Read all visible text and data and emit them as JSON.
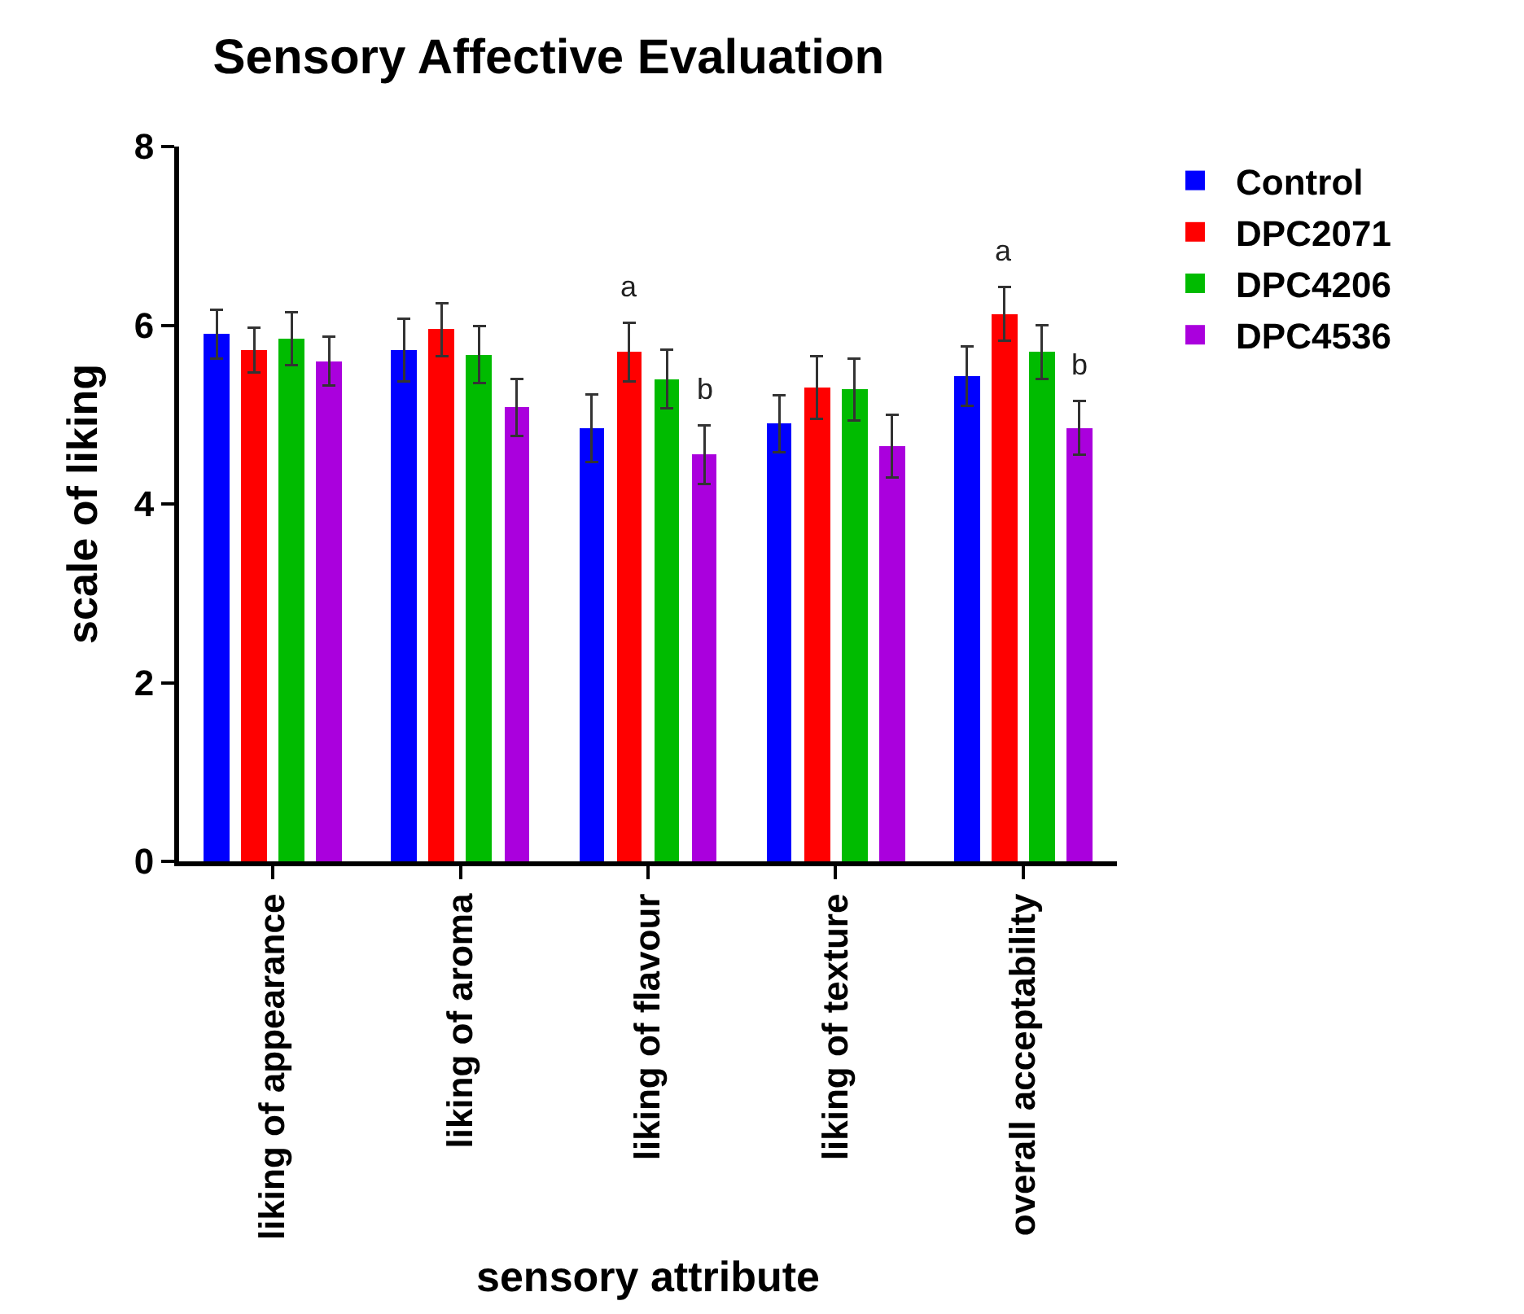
{
  "chart_data": {
    "type": "bar",
    "title": "Sensory Affective Evaluation",
    "xlabel": "sensory attribute",
    "ylabel": "scale of liking",
    "categories": [
      "liking of appearance",
      "liking of aroma",
      "liking of flavour",
      "liking of texture",
      "overall acceptability"
    ],
    "series": [
      {
        "name": "Control",
        "color": "#0000ff",
        "values": [
          5.9,
          5.72,
          4.85,
          4.9,
          5.43
        ],
        "errors": [
          0.27,
          0.35,
          0.38,
          0.32,
          0.33
        ]
      },
      {
        "name": "DPC2071",
        "color": "#ff0000",
        "values": [
          5.72,
          5.95,
          5.7,
          5.3,
          6.13
        ],
        "errors": [
          0.25,
          0.3,
          0.33,
          0.35,
          0.3
        ],
        "value_labels": [
          null,
          null,
          "a",
          null,
          "a"
        ]
      },
      {
        "name": "DPC4206",
        "color": "#00bb00",
        "values": [
          5.85,
          5.67,
          5.4,
          5.28,
          5.7
        ],
        "errors": [
          0.3,
          0.32,
          0.33,
          0.35,
          0.3
        ]
      },
      {
        "name": "DPC4536",
        "color": "#aa00dd",
        "values": [
          5.6,
          5.08,
          4.55,
          4.65,
          4.85
        ],
        "errors": [
          0.27,
          0.32,
          0.33,
          0.35,
          0.3
        ],
        "value_labels": [
          null,
          null,
          "b",
          null,
          "b"
        ]
      }
    ],
    "ylim": [
      0,
      8
    ],
    "yticks": [
      0,
      2,
      4,
      6,
      8
    ],
    "legend": "top right"
  }
}
